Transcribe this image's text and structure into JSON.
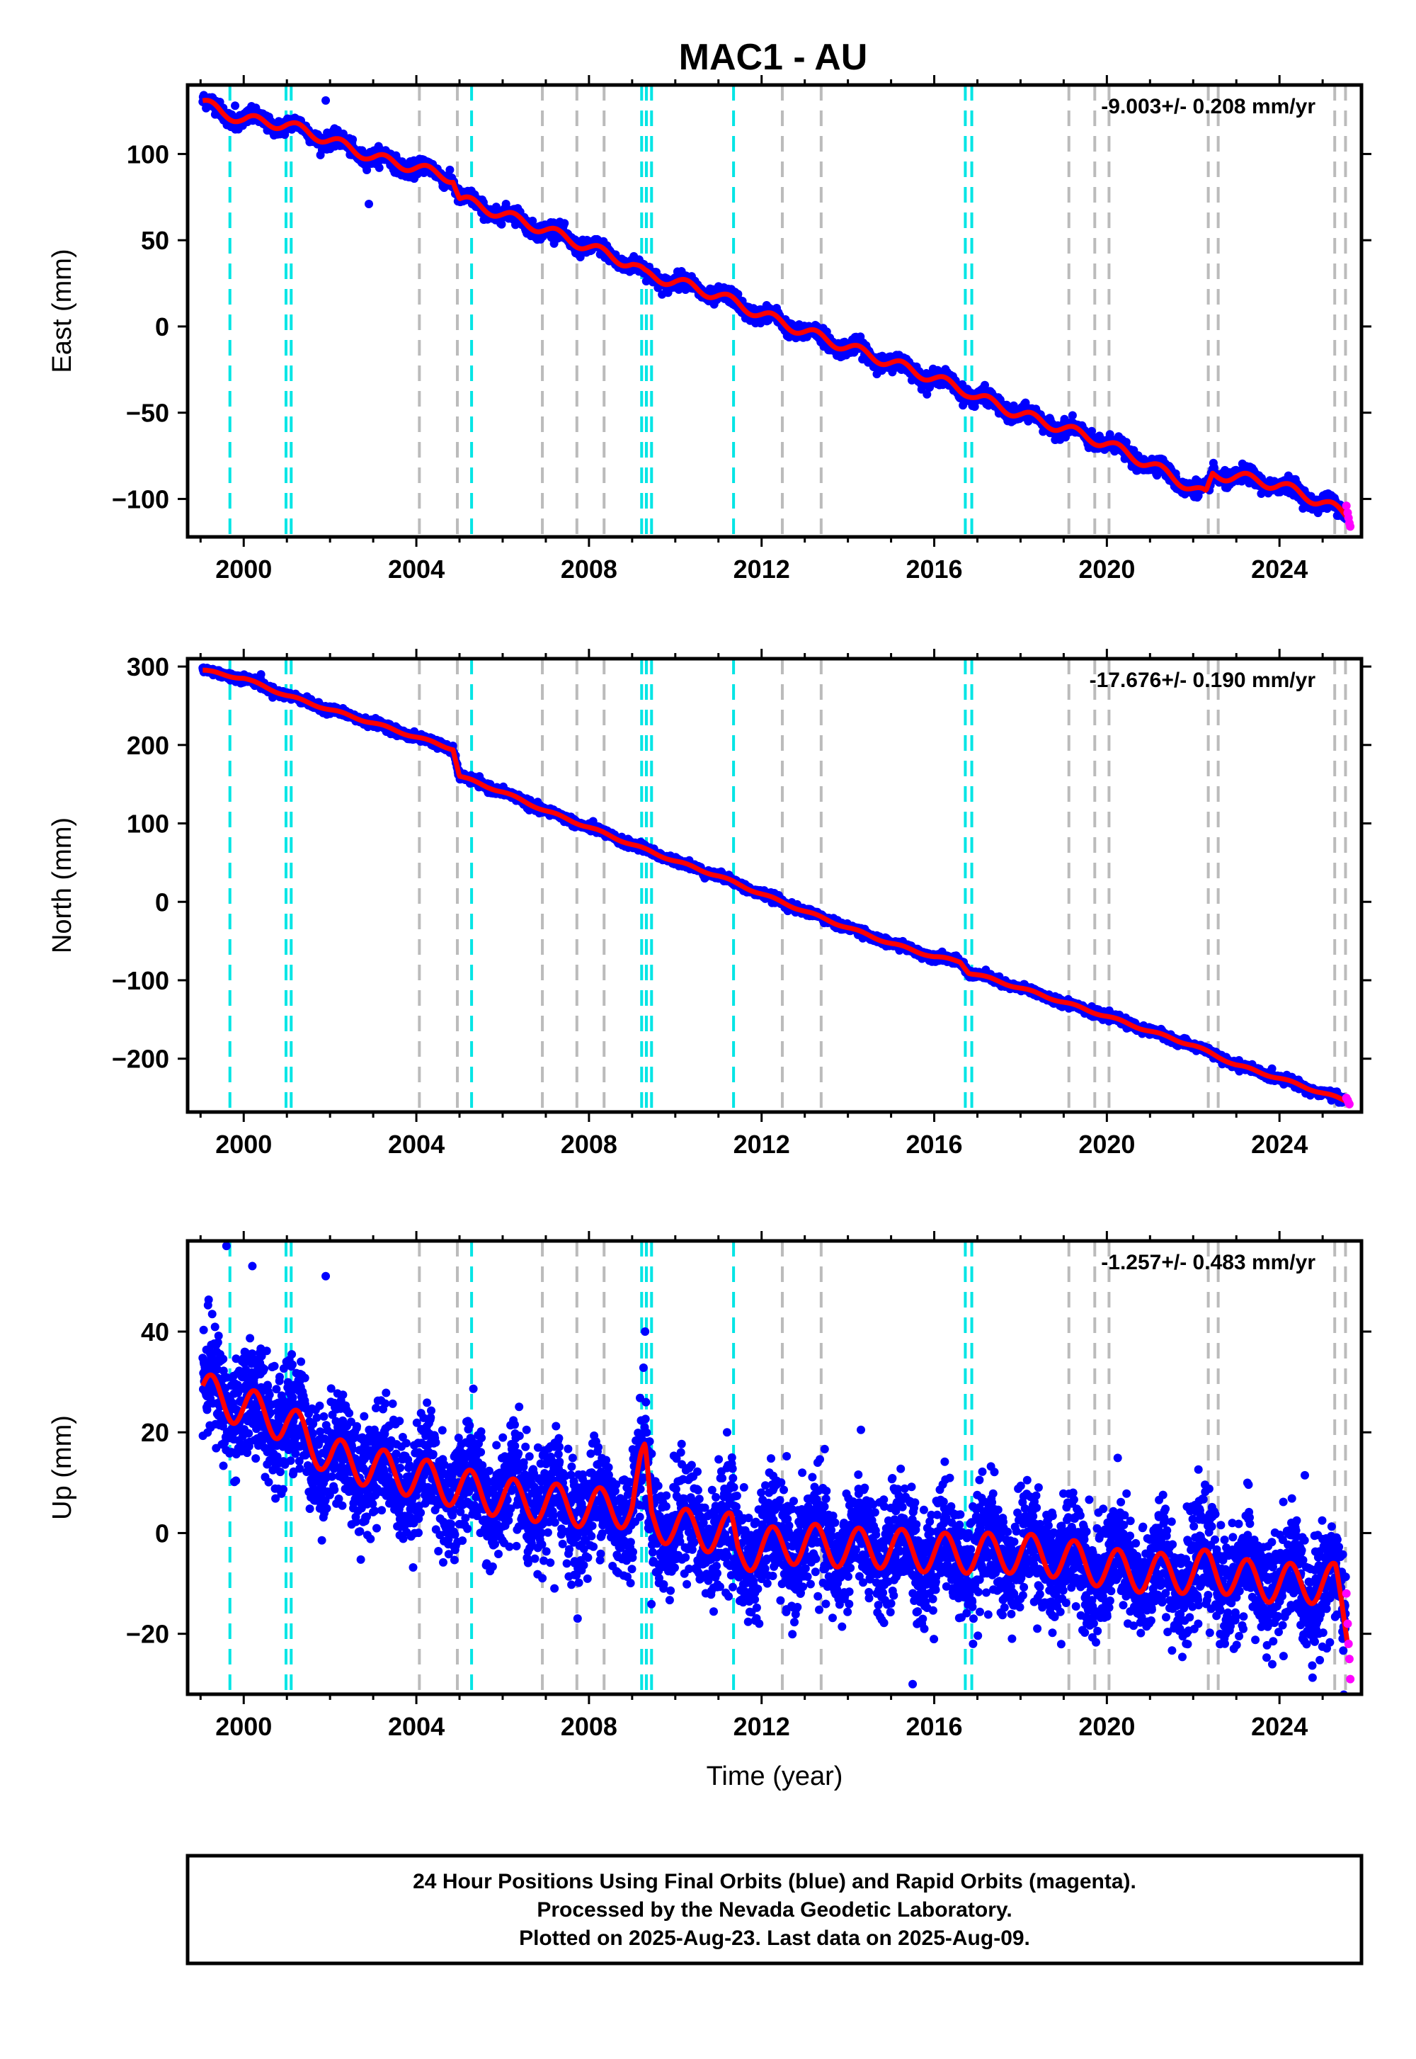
{
  "page": {
    "title": "MAC1 - AU",
    "footer": {
      "lines": [
        "24 Hour Positions Using Final Orbits (blue) and Rapid Orbits (magenta).",
        "Processed by the Nevada Geodetic Laboratory.",
        "Plotted on 2025-Aug-23. Last data on 2025-Aug-09."
      ]
    }
  },
  "colors": {
    "final_points": "#0000ff",
    "rapid_points": "#ff00ff",
    "model_line": "#ff0000",
    "equipment_change": "#00e5e5",
    "earthquake_event": "#bbbbbb"
  },
  "chart_data": [
    {
      "type": "scatter",
      "name": "east",
      "ylabel": "East (mm)",
      "xlabel": "",
      "rate_text": "-9.003+/- 0.208 mm/yr",
      "xlim": [
        1998.7,
        2025.9
      ],
      "ylim": [
        -122,
        140
      ],
      "xticks": [
        2000,
        2004,
        2008,
        2012,
        2016,
        2020,
        2024
      ],
      "yticks": [
        100,
        50,
        0,
        -50,
        -100
      ],
      "ytick_labels": [
        "100",
        "50",
        "0",
        "−50",
        "−100"
      ],
      "trend_points": [
        [
          1999.05,
          130
        ],
        [
          1999.5,
          124
        ],
        [
          2000.0,
          120
        ],
        [
          2001.0,
          117
        ],
        [
          2002.0,
          108
        ],
        [
          2003.0,
          98
        ],
        [
          2004.0,
          92
        ],
        [
          2004.85,
          86
        ],
        [
          2005.0,
          74
        ],
        [
          2006.0,
          65
        ],
        [
          2007.0,
          56
        ],
        [
          2008.0,
          46
        ],
        [
          2009.0,
          36
        ],
        [
          2009.3,
          30
        ],
        [
          2010.0,
          26
        ],
        [
          2011.0,
          18
        ],
        [
          2012.0,
          7
        ],
        [
          2013.0,
          -3
        ],
        [
          2014.0,
          -12
        ],
        [
          2015.0,
          -21
        ],
        [
          2016.0,
          -30
        ],
        [
          2016.8,
          -38
        ],
        [
          2017.0,
          -41
        ],
        [
          2018.0,
          -51
        ],
        [
          2019.0,
          -59
        ],
        [
          2020.0,
          -68
        ],
        [
          2021.0,
          -80
        ],
        [
          2022.3,
          -98
        ],
        [
          2022.45,
          -86
        ],
        [
          2023.0,
          -87
        ],
        [
          2024.0,
          -92
        ],
        [
          2025.0,
          -102
        ],
        [
          2025.6,
          -110
        ]
      ],
      "seasonal_amplitude": 3,
      "scatter_sigma": 2.2,
      "rapid_points": [
        [
          2025.55,
          -104
        ],
        [
          2025.58,
          -108
        ],
        [
          2025.6,
          -111
        ],
        [
          2025.62,
          -114
        ],
        [
          2025.64,
          -116
        ]
      ],
      "outliers": [
        [
          2001.9,
          131
        ],
        [
          2002.9,
          71
        ],
        [
          1999.8,
          128
        ]
      ]
    },
    {
      "type": "scatter",
      "name": "north",
      "ylabel": "North (mm)",
      "xlabel": "",
      "rate_text": "-17.676+/- 0.190 mm/yr",
      "xlim": [
        1998.7,
        2025.9
      ],
      "ylim": [
        -268,
        310
      ],
      "xticks": [
        2000,
        2004,
        2008,
        2012,
        2016,
        2020,
        2024
      ],
      "yticks": [
        300,
        200,
        100,
        0,
        -100,
        -200
      ],
      "ytick_labels": [
        "300",
        "200",
        "100",
        "0",
        "−100",
        "−200"
      ],
      "trend_points": [
        [
          1999.05,
          295
        ],
        [
          2000.0,
          285
        ],
        [
          2001.0,
          263
        ],
        [
          2002.0,
          245
        ],
        [
          2003.0,
          228
        ],
        [
          2004.0,
          210
        ],
        [
          2004.85,
          195
        ],
        [
          2005.0,
          160
        ],
        [
          2006.0,
          140
        ],
        [
          2007.0,
          116
        ],
        [
          2008.0,
          95
        ],
        [
          2009.0,
          73
        ],
        [
          2010.0,
          52
        ],
        [
          2011.0,
          33
        ],
        [
          2012.0,
          10
        ],
        [
          2013.0,
          -12
        ],
        [
          2014.0,
          -33
        ],
        [
          2015.0,
          -53
        ],
        [
          2016.0,
          -70
        ],
        [
          2016.6,
          -76
        ],
        [
          2016.8,
          -90
        ],
        [
          2017.0,
          -93
        ],
        [
          2018.0,
          -110
        ],
        [
          2019.0,
          -128
        ],
        [
          2020.0,
          -146
        ],
        [
          2021.0,
          -165
        ],
        [
          2022.0,
          -183
        ],
        [
          2023.0,
          -208
        ],
        [
          2024.0,
          -225
        ],
        [
          2025.6,
          -255
        ]
      ],
      "seasonal_amplitude": 1.5,
      "scatter_sigma": 2.5,
      "rapid_points": [
        [
          2025.55,
          -250
        ],
        [
          2025.58,
          -253
        ],
        [
          2025.6,
          -256
        ],
        [
          2025.62,
          -258
        ]
      ],
      "outliers": [
        [
          2000.4,
          290
        ]
      ]
    },
    {
      "type": "scatter",
      "name": "up",
      "ylabel": "Up (mm)",
      "xlabel": "Time (year)",
      "rate_text": "-1.257+/- 0.483 mm/yr",
      "xlim": [
        1998.7,
        2025.9
      ],
      "ylim": [
        -32,
        58
      ],
      "xticks": [
        2000,
        2004,
        2008,
        2012,
        2016,
        2020,
        2024
      ],
      "yticks": [
        40,
        20,
        0,
        -20
      ],
      "ytick_labels": [
        "40",
        "20",
        "0",
        "−20"
      ],
      "trend_points": [
        [
          1999.05,
          28
        ],
        [
          2000.0,
          25
        ],
        [
          2001.0,
          22
        ],
        [
          2002.0,
          15
        ],
        [
          2003.0,
          13
        ],
        [
          2004.0,
          11
        ],
        [
          2005.0,
          9
        ],
        [
          2006.0,
          7
        ],
        [
          2007.0,
          6
        ],
        [
          2008.0,
          5
        ],
        [
          2009.0,
          5
        ],
        [
          2009.2,
          12
        ],
        [
          2009.3,
          14
        ],
        [
          2009.45,
          3
        ],
        [
          2010.0,
          1
        ],
        [
          2011.0,
          0
        ],
        [
          2011.3,
          0
        ],
        [
          2011.45,
          -4
        ],
        [
          2012.0,
          -3
        ],
        [
          2013.0,
          -2
        ],
        [
          2014.0,
          -3
        ],
        [
          2015.0,
          -3
        ],
        [
          2016.0,
          -4
        ],
        [
          2017.0,
          -4
        ],
        [
          2018.0,
          -4
        ],
        [
          2019.0,
          -5
        ],
        [
          2020.0,
          -7
        ],
        [
          2021.0,
          -8
        ],
        [
          2022.0,
          -8
        ],
        [
          2022.4,
          -7
        ],
        [
          2023.0,
          -9
        ],
        [
          2024.0,
          -10
        ],
        [
          2025.0,
          -10
        ],
        [
          2025.3,
          -10
        ],
        [
          2025.6,
          -21
        ]
      ],
      "seasonal_amplitude": 4,
      "scatter_sigma": 5.5,
      "rapid_points": [
        [
          2025.55,
          -12
        ],
        [
          2025.58,
          -18
        ],
        [
          2025.6,
          -22
        ],
        [
          2025.62,
          -25
        ],
        [
          2025.64,
          -29
        ]
      ],
      "outliers": [
        [
          1999.6,
          57
        ],
        [
          2000.2,
          53
        ],
        [
          2001.9,
          51
        ],
        [
          2009.3,
          40
        ],
        [
          2011.2,
          20
        ],
        [
          2015.5,
          -30
        ],
        [
          2007.2,
          -11
        ],
        [
          2016.9,
          -22
        ]
      ]
    }
  ],
  "events": {
    "equipment_change": [
      1999.68,
      2000.98,
      2001.1,
      2005.28,
      2009.22,
      2009.33,
      2009.45,
      2011.35,
      2016.72,
      2016.87
    ],
    "earthquake": [
      2004.07,
      2004.95,
      2006.92,
      2007.72,
      2008.35,
      2012.48,
      2013.38,
      2019.12,
      2019.72,
      2020.05,
      2022.35,
      2022.58,
      2025.28,
      2025.53
    ]
  }
}
